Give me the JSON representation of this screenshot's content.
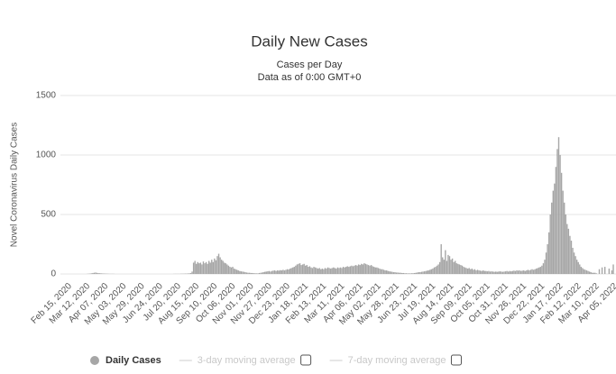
{
  "chart_data": {
    "type": "bar",
    "title": "Daily New Cases",
    "subtitle": "Cases per Day",
    "note": "Data as of 0:00 GMT+0",
    "y_label": "Novel Coronavirus Daily Cases",
    "ylim": [
      0,
      1500
    ],
    "yticks": [
      0,
      500,
      1000,
      1500
    ],
    "grid": true,
    "categories": [
      "Feb 15, 2020",
      null,
      null,
      null,
      null,
      null,
      null,
      null,
      null,
      null,
      null,
      null,
      null,
      "Mar 12, 2020",
      null,
      null,
      null,
      null,
      null,
      null,
      null,
      null,
      null,
      null,
      null,
      null,
      "Apr 07, 2020",
      null,
      null,
      null,
      null,
      null,
      null,
      null,
      null,
      null,
      null,
      null,
      null,
      "May 03, 2020",
      null,
      null,
      null,
      null,
      null,
      null,
      null,
      null,
      null,
      null,
      null,
      null,
      "May 29, 2020",
      null,
      null,
      null,
      null,
      null,
      null,
      null,
      null,
      null,
      null,
      null,
      null,
      "Jun 24, 2020",
      null,
      null,
      null,
      null,
      null,
      null,
      null,
      null,
      null,
      null,
      null,
      null,
      "Jul 20, 2020",
      null,
      null,
      null,
      null,
      null,
      null,
      null,
      null,
      null,
      null,
      null,
      null,
      "Aug 15, 2020",
      null,
      null,
      null,
      null,
      null,
      null,
      null,
      null,
      null,
      null,
      null,
      null,
      "Sep 10, 2020",
      null,
      null,
      null,
      null,
      null,
      null,
      null,
      null,
      null,
      null,
      null,
      null,
      "Oct 06, 2020",
      null,
      null,
      null,
      null,
      null,
      null,
      null,
      null,
      null,
      null,
      null,
      null,
      "Nov 01, 2020",
      null,
      null,
      null,
      null,
      null,
      null,
      null,
      null,
      null,
      null,
      null,
      null,
      "Nov 27, 2020",
      null,
      null,
      null,
      null,
      null,
      null,
      null,
      null,
      null,
      null,
      null,
      null,
      "Dec 23, 2020",
      null,
      null,
      null,
      null,
      null,
      null,
      null,
      null,
      null,
      null,
      null,
      null,
      "Jan 18, 2021",
      null,
      null,
      null,
      null,
      null,
      null,
      null,
      null,
      null,
      null,
      null,
      null,
      "Feb 13, 2021",
      null,
      null,
      null,
      null,
      null,
      null,
      null,
      null,
      null,
      null,
      null,
      null,
      "Mar 11, 2021",
      null,
      null,
      null,
      null,
      null,
      null,
      null,
      null,
      null,
      null,
      null,
      null,
      "Apr 06, 2021",
      null,
      null,
      null,
      null,
      null,
      null,
      null,
      null,
      null,
      null,
      null,
      null,
      "May 02, 2021",
      null,
      null,
      null,
      null,
      null,
      null,
      null,
      null,
      null,
      null,
      null,
      null,
      "May 28, 2021",
      null,
      null,
      null,
      null,
      null,
      null,
      null,
      null,
      null,
      null,
      null,
      null,
      "Jun 23, 2021",
      null,
      null,
      null,
      null,
      null,
      null,
      null,
      null,
      null,
      null,
      null,
      null,
      "Jul 19, 2021",
      null,
      null,
      null,
      null,
      null,
      null,
      null,
      null,
      null,
      null,
      null,
      null,
      "Aug 14, 2021",
      null,
      null,
      null,
      null,
      null,
      null,
      null,
      null,
      null,
      null,
      null,
      null,
      "Sep 09, 2021",
      null,
      null,
      null,
      null,
      null,
      null,
      null,
      null,
      null,
      null,
      null,
      null,
      "Oct 05, 2021",
      null,
      null,
      null,
      null,
      null,
      null,
      null,
      null,
      null,
      null,
      null,
      null,
      "Oct 31, 2021",
      null,
      null,
      null,
      null,
      null,
      null,
      null,
      null,
      null,
      null,
      null,
      null,
      "Nov 26, 2021",
      null,
      null,
      null,
      null,
      null,
      null,
      null,
      null,
      null,
      null,
      null,
      null,
      "Dec 22, 2021",
      null,
      null,
      null,
      null,
      null,
      null,
      null,
      null,
      null,
      null,
      null,
      null,
      "Jan 17, 2022",
      null,
      null,
      null,
      null,
      null,
      null,
      null,
      null,
      null,
      null,
      null,
      null,
      "Feb 12, 2022",
      null,
      null,
      null,
      null,
      null,
      null,
      null,
      null,
      null,
      null,
      null,
      null,
      "Mar 10, 2022",
      null,
      null,
      null,
      null,
      null,
      null,
      null,
      null,
      null,
      null,
      null,
      null,
      "Apr 05, 2022"
    ],
    "series": [
      {
        "name": "Daily Cases",
        "color": "#a6a6a6",
        "values": [
          0,
          0,
          0,
          0,
          0,
          0,
          0,
          0,
          0,
          0,
          0,
          0,
          0,
          0,
          1,
          2,
          3,
          5,
          8,
          10,
          12,
          9,
          7,
          6,
          5,
          4,
          3,
          3,
          2,
          2,
          1,
          1,
          1,
          1,
          0,
          0,
          0,
          0,
          0,
          0,
          0,
          0,
          0,
          0,
          0,
          0,
          0,
          0,
          0,
          0,
          0,
          0,
          0,
          0,
          0,
          0,
          0,
          0,
          0,
          0,
          0,
          0,
          0,
          0,
          0,
          0,
          0,
          0,
          0,
          0,
          0,
          0,
          0,
          0,
          0,
          0,
          1,
          1,
          1,
          1,
          1,
          2,
          2,
          2,
          3,
          3,
          4,
          5,
          8,
          20,
          95,
          110,
          85,
          100,
          90,
          95,
          80,
          105,
          90,
          100,
          85,
          110,
          95,
          120,
          100,
          130,
          115,
          150,
          170,
          140,
          120,
          110,
          95,
          90,
          80,
          70,
          60,
          55,
          60,
          45,
          40,
          35,
          30,
          25,
          22,
          20,
          18,
          15,
          12,
          10,
          10,
          8,
          8,
          6,
          6,
          5,
          5,
          8,
          10,
          12,
          15,
          18,
          20,
          22,
          25,
          20,
          25,
          28,
          30,
          25,
          30,
          28,
          32,
          30,
          35,
          30,
          35,
          40,
          38,
          45,
          50,
          55,
          60,
          70,
          80,
          85,
          90,
          75,
          80,
          85,
          70,
          75,
          60,
          65,
          55,
          50,
          60,
          55,
          50,
          45,
          50,
          40,
          45,
          40,
          50,
          45,
          55,
          50,
          45,
          50,
          55,
          50,
          45,
          55,
          50,
          55,
          50,
          60,
          55,
          60,
          65,
          60,
          65,
          70,
          65,
          70,
          75,
          70,
          80,
          75,
          85,
          80,
          90,
          85,
          80,
          75,
          70,
          75,
          65,
          60,
          55,
          55,
          50,
          45,
          40,
          40,
          35,
          30,
          30,
          25,
          22,
          20,
          18,
          15,
          15,
          12,
          12,
          10,
          10,
          8,
          8,
          6,
          6,
          5,
          5,
          5,
          6,
          6,
          8,
          10,
          12,
          15,
          15,
          18,
          20,
          22,
          25,
          28,
          30,
          35,
          40,
          45,
          55,
          60,
          70,
          80,
          100,
          250,
          140,
          120,
          200,
          110,
          160,
          150,
          120,
          130,
          100,
          110,
          90,
          85,
          80,
          75,
          70,
          60,
          55,
          50,
          45,
          50,
          40,
          45,
          35,
          40,
          30,
          35,
          30,
          28,
          25,
          30,
          25,
          25,
          22,
          25,
          20,
          22,
          20,
          18,
          20,
          18,
          20,
          22,
          20,
          18,
          20,
          22,
          25,
          20,
          25,
          22,
          25,
          28,
          25,
          30,
          28,
          30,
          25,
          28,
          30,
          25,
          30,
          35,
          30,
          35,
          40,
          35,
          40,
          45,
          50,
          55,
          60,
          70,
          90,
          120,
          180,
          250,
          350,
          500,
          600,
          700,
          760,
          900,
          1050,
          1150,
          1000,
          850,
          700,
          600,
          500,
          420,
          380,
          320,
          280,
          220,
          180,
          150,
          120,
          100,
          80,
          60,
          50,
          40,
          35,
          30,
          25,
          20,
          15,
          10,
          10,
          10,
          5,
          0,
          40,
          0,
          55,
          0,
          60,
          0,
          0,
          45,
          0,
          30,
          80
        ]
      },
      {
        "name": "3-day moving average",
        "visible": false
      },
      {
        "name": "7-day moving average",
        "visible": false
      }
    ]
  }
}
